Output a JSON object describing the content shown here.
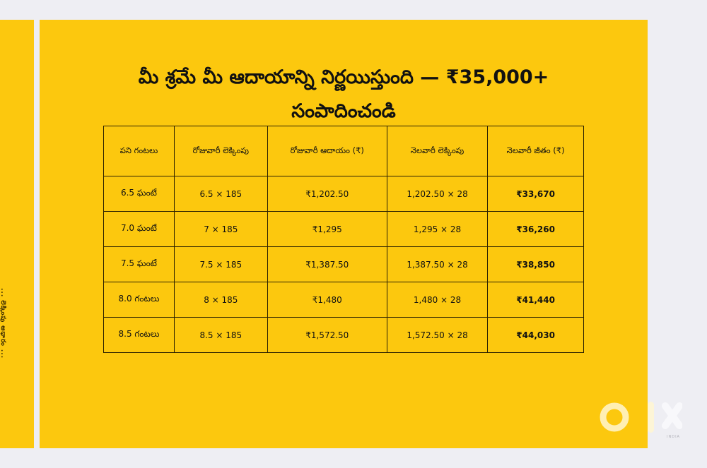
{
  "side_panel": {
    "text": "... లెక్కింపు ఆధారం ..."
  },
  "title": {
    "line1": "మీ శ్రమే మీ ఆదాయాన్ని నిర్ణయిస్తుంది — ₹35,000+",
    "line2": "సంపాదించండి"
  },
  "table": {
    "headers": [
      "పని గంటలు",
      "రోజువారీ లెక్కింపు",
      "రోజువారీ ఆదాయం (₹)",
      "నెలవారీ లెక్కింపు",
      "నెలవారీ జీతం (₹)"
    ],
    "rows": [
      [
        "6.5 ఘంటే",
        "6.5 × 185",
        "₹1,202.50",
        "1,202.50 × 28",
        "₹33,670"
      ],
      [
        "7.0 ఘంటే",
        "7 × 185",
        "₹1,295",
        "1,295 × 28",
        "₹36,260"
      ],
      [
        "7.5 ఘంటే",
        "7.5 × 185",
        "₹1,387.50",
        "1,387.50 × 28",
        "₹38,850"
      ],
      [
        "8.0 గంటలు",
        "8 × 185",
        "₹1,480",
        "1,480 × 28",
        "₹41,440"
      ],
      [
        "8.5 గంటలు",
        "8.5 × 185",
        "₹1,572.50",
        "1,572.50 × 28",
        "₹44,030"
      ]
    ]
  },
  "watermark": {
    "brand": "OLX",
    "sub": "INDIA"
  },
  "colors": {
    "panel": "#fcc80e",
    "background": "#eeeef3"
  }
}
